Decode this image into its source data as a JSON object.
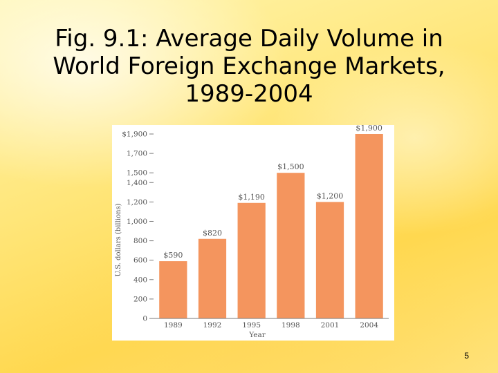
{
  "slide": {
    "title_lines": [
      "Fig. 9.1: Average Daily Volume in",
      "World Foreign Exchange Markets,",
      "1989-2004"
    ],
    "page_number": "5"
  },
  "chart_data": {
    "type": "bar",
    "categories": [
      "1989",
      "1992",
      "1995",
      "1998",
      "2001",
      "2004"
    ],
    "values": [
      590,
      820,
      1190,
      1500,
      1200,
      1900
    ],
    "data_labels": [
      "$590",
      "$820",
      "$1,190",
      "$1,500",
      "$1,200",
      "$1,900"
    ],
    "xlabel": "Year",
    "ylabel": "U.S. dollars (billions)",
    "ylim": [
      0,
      1900
    ],
    "yticks": [
      0,
      200,
      400,
      600,
      800,
      1000,
      1200,
      1400,
      1500,
      1700,
      1900
    ],
    "ytick_labels": [
      "0",
      "200",
      "400",
      "600",
      "800",
      "1,000",
      "1,200",
      "1,400",
      "1,500",
      "1,700",
      "$1,900"
    ],
    "grid": false,
    "bar_color": "#f4955e",
    "axis_color": "#7a7a7a",
    "label_color": "#555555"
  }
}
